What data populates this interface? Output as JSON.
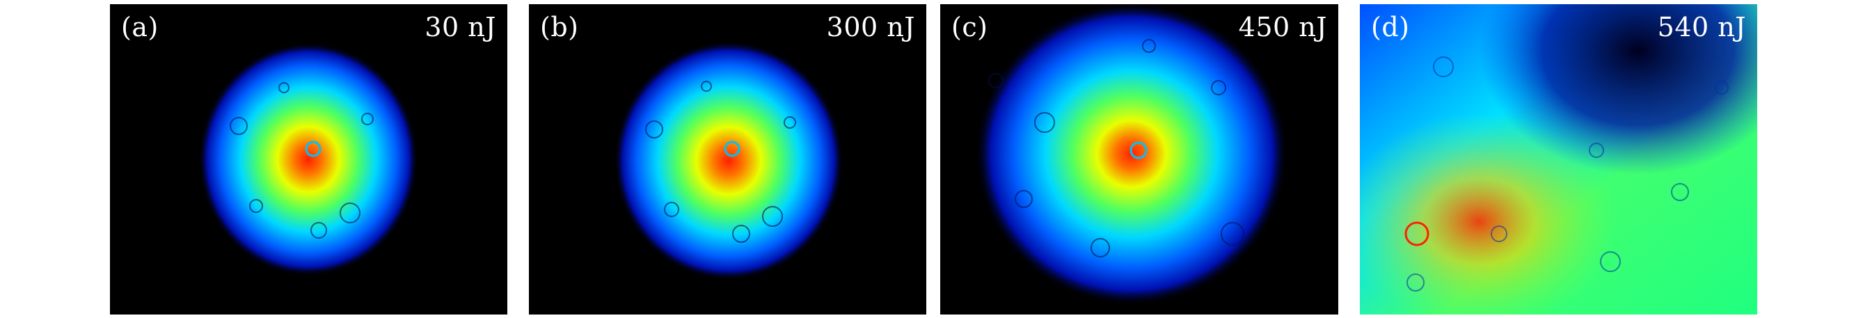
{
  "figure": {
    "panels": [
      {
        "label": "(a)",
        "energy": "30 nJ"
      },
      {
        "label": "(b)",
        "energy": "300 nJ"
      },
      {
        "label": "(c)",
        "energy": "450 nJ"
      },
      {
        "label": "(d)",
        "energy": "540 nJ"
      }
    ],
    "colormap": [
      "#000000",
      "#0000c8",
      "#0060ff",
      "#00e0ff",
      "#40ff80",
      "#c0ff00",
      "#ffa000",
      "#ff2000"
    ]
  }
}
